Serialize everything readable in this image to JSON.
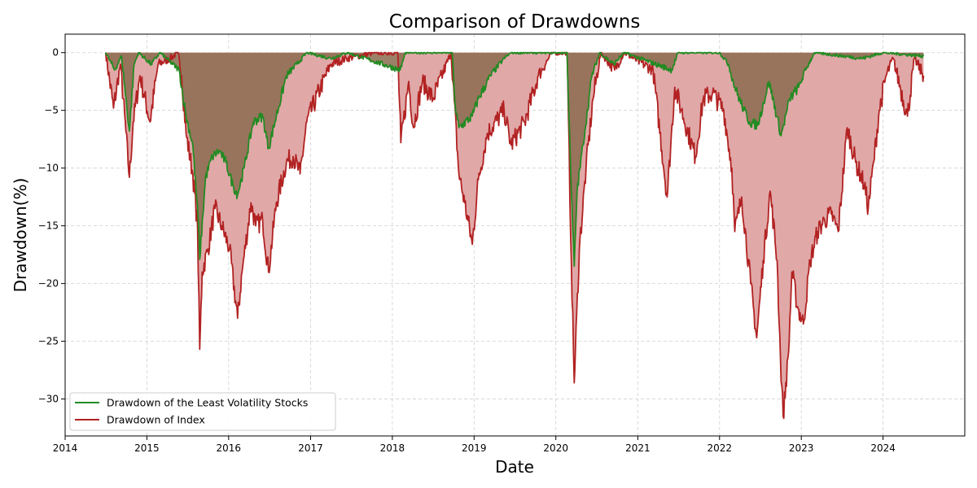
{
  "chart_data": {
    "type": "area",
    "title": "Comparison of Drawdowns",
    "xlabel": "Date",
    "ylabel": "Drawdown(%)",
    "xlim": [
      "2014-01-01",
      "2024-12-31"
    ],
    "ylim": [
      -33.2,
      1.6
    ],
    "x_ticks": [
      "2014",
      "2015",
      "2016",
      "2017",
      "2018",
      "2019",
      "2020",
      "2021",
      "2022",
      "2023",
      "2024"
    ],
    "y_ticks": [
      0,
      -5,
      -10,
      -15,
      -20,
      -25,
      -30
    ],
    "y_tick_labels": [
      "0",
      "−5",
      "−10",
      "−15",
      "−20",
      "−25",
      "−30"
    ],
    "grid": true,
    "legend_position": "lower-left",
    "series": [
      {
        "name": "Drawdown of the Least Volatility Stocks",
        "color": "#228b22",
        "fill_color": "#8b6b4f",
        "points": [
          [
            "2014-07-01",
            0
          ],
          [
            "2014-08-10",
            -1.5
          ],
          [
            "2014-09-10",
            -0.3
          ],
          [
            "2014-10-15",
            -6.8
          ],
          [
            "2014-11-05",
            -1.0
          ],
          [
            "2014-11-25",
            0
          ],
          [
            "2015-01-20",
            -1.0
          ],
          [
            "2015-03-01",
            0
          ],
          [
            "2015-05-25",
            -1.5
          ],
          [
            "2015-06-25",
            -5.5
          ],
          [
            "2015-07-25",
            -8.0
          ],
          [
            "2015-08-20",
            -15.0
          ],
          [
            "2015-08-25",
            -17.9
          ],
          [
            "2015-09-20",
            -10.8
          ],
          [
            "2015-10-20",
            -9.0
          ],
          [
            "2015-11-20",
            -8.5
          ],
          [
            "2015-12-20",
            -9.5
          ],
          [
            "2016-01-20",
            -11.5
          ],
          [
            "2016-02-10",
            -12.3
          ],
          [
            "2016-03-10",
            -10.0
          ],
          [
            "2016-04-20",
            -6.0
          ],
          [
            "2016-06-01",
            -5.5
          ],
          [
            "2016-06-27",
            -8.3
          ],
          [
            "2016-08-01",
            -5.5
          ],
          [
            "2016-09-15",
            -2.0
          ],
          [
            "2016-11-01",
            -1.0
          ],
          [
            "2016-12-15",
            0
          ],
          [
            "2017-04-01",
            -0.5
          ],
          [
            "2017-06-15",
            0
          ],
          [
            "2018-02-05",
            -1.5
          ],
          [
            "2018-03-01",
            0
          ],
          [
            "2018-09-25",
            0
          ],
          [
            "2018-10-10",
            -5.0
          ],
          [
            "2018-10-25",
            -6.5
          ],
          [
            "2018-12-24",
            -5.5
          ],
          [
            "2019-01-20",
            -4.0
          ],
          [
            "2019-03-15",
            -2.0
          ],
          [
            "2019-05-15",
            -0.5
          ],
          [
            "2019-06-15",
            0
          ],
          [
            "2020-02-20",
            0
          ],
          [
            "2020-03-10",
            -12.0
          ],
          [
            "2020-03-23",
            -18.5
          ],
          [
            "2020-04-05",
            -12.0
          ],
          [
            "2020-05-01",
            -8.0
          ],
          [
            "2020-06-10",
            -2.0
          ],
          [
            "2020-07-15",
            0
          ],
          [
            "2020-09-15",
            -1.0
          ],
          [
            "2020-11-01",
            0
          ],
          [
            "2021-06-01",
            -1.5
          ],
          [
            "2021-07-01",
            0
          ],
          [
            "2022-01-01",
            0
          ],
          [
            "2022-02-10",
            -1.0
          ],
          [
            "2022-03-10",
            -3.0
          ],
          [
            "2022-04-20",
            -5.0
          ],
          [
            "2022-05-15",
            -6.0
          ],
          [
            "2022-06-20",
            -6.3
          ],
          [
            "2022-08-10",
            -2.5
          ],
          [
            "2022-10-03",
            -7.2
          ],
          [
            "2022-11-10",
            -4.0
          ],
          [
            "2022-12-20",
            -3.0
          ],
          [
            "2023-01-20",
            -1.5
          ],
          [
            "2023-03-01",
            0
          ],
          [
            "2023-10-01",
            -0.5
          ],
          [
            "2024-01-01",
            0
          ],
          [
            "2024-06-30",
            -0.3
          ]
        ]
      },
      {
        "name": "Drawdown of Index",
        "color": "#b22222",
        "fill_color": "#dfa3a3",
        "points": [
          [
            "2014-07-01",
            0
          ],
          [
            "2014-08-05",
            -4.8
          ],
          [
            "2014-09-05",
            -1.0
          ],
          [
            "2014-10-15",
            -10.8
          ],
          [
            "2014-11-01",
            -6.0
          ],
          [
            "2014-12-01",
            -2.0
          ],
          [
            "2015-01-15",
            -6.0
          ],
          [
            "2015-02-20",
            -1.0
          ],
          [
            "2015-04-15",
            -0.5
          ],
          [
            "2015-05-20",
            0
          ],
          [
            "2015-06-05",
            -2.0
          ],
          [
            "2015-06-25",
            -7.0
          ],
          [
            "2015-07-25",
            -10.5
          ],
          [
            "2015-08-15",
            -15.0
          ],
          [
            "2015-08-25",
            -25.7
          ],
          [
            "2015-09-05",
            -19.0
          ],
          [
            "2015-10-01",
            -17.0
          ],
          [
            "2015-11-01",
            -13.5
          ],
          [
            "2015-12-01",
            -15.0
          ],
          [
            "2016-01-05",
            -17.0
          ],
          [
            "2016-02-10",
            -23.0
          ],
          [
            "2016-03-01",
            -19.0
          ],
          [
            "2016-04-10",
            -13.0
          ],
          [
            "2016-05-01",
            -15.0
          ],
          [
            "2016-06-01",
            -14.5
          ],
          [
            "2016-06-27",
            -19.0
          ],
          [
            "2016-08-01",
            -13.0
          ],
          [
            "2016-09-15",
            -9.5
          ],
          [
            "2016-10-15",
            -9.0
          ],
          [
            "2016-11-15",
            -10.5
          ],
          [
            "2016-12-15",
            -6.0
          ],
          [
            "2017-02-15",
            -3.0
          ],
          [
            "2017-04-01",
            -1.0
          ],
          [
            "2017-06-10",
            -0.5
          ],
          [
            "2017-10-15",
            0
          ],
          [
            "2018-01-25",
            0
          ],
          [
            "2018-02-08",
            -7.8
          ],
          [
            "2018-03-15",
            -2.5
          ],
          [
            "2018-04-05",
            -6.5
          ],
          [
            "2018-05-15",
            -2.5
          ],
          [
            "2018-07-01",
            -4.0
          ],
          [
            "2018-09-20",
            0
          ],
          [
            "2018-10-25",
            -10.5
          ],
          [
            "2018-11-20",
            -13.0
          ],
          [
            "2018-12-24",
            -16.6
          ],
          [
            "2019-01-20",
            -11.0
          ],
          [
            "2019-03-01",
            -7.0
          ],
          [
            "2019-05-15",
            -5.0
          ],
          [
            "2019-06-15",
            -8.0
          ],
          [
            "2019-08-15",
            -6.0
          ],
          [
            "2019-10-15",
            -2.0
          ],
          [
            "2019-12-15",
            0
          ],
          [
            "2020-02-20",
            0
          ],
          [
            "2020-03-10",
            -18.0
          ],
          [
            "2020-03-23",
            -28.6
          ],
          [
            "2020-04-15",
            -17.0
          ],
          [
            "2020-05-15",
            -10.0
          ],
          [
            "2020-06-15",
            -4.0
          ],
          [
            "2020-07-20",
            0
          ],
          [
            "2020-09-20",
            -1.5
          ],
          [
            "2020-11-01",
            0
          ],
          [
            "2021-03-10",
            -1.5
          ],
          [
            "2021-05-12",
            -12.5
          ],
          [
            "2021-06-15",
            -3.0
          ],
          [
            "2021-07-15",
            -5.0
          ],
          [
            "2021-09-15",
            -9.0
          ],
          [
            "2021-10-20",
            -4.0
          ],
          [
            "2021-12-01",
            -3.5
          ],
          [
            "2022-01-20",
            -5.0
          ],
          [
            "2022-02-25",
            -10.0
          ],
          [
            "2022-03-10",
            -15.5
          ],
          [
            "2022-04-10",
            -12.5
          ],
          [
            "2022-05-20",
            -20.0
          ],
          [
            "2022-06-16",
            -24.7
          ],
          [
            "2022-07-15",
            -18.0
          ],
          [
            "2022-08-15",
            -12.0
          ],
          [
            "2022-09-15",
            -18.0
          ],
          [
            "2022-09-30",
            -26.5
          ],
          [
            "2022-10-12",
            -31.5
          ],
          [
            "2022-11-05",
            -26.0
          ],
          [
            "2022-11-20",
            -19.0
          ],
          [
            "2022-12-15",
            -22.0
          ],
          [
            "2023-01-10",
            -23.5
          ],
          [
            "2023-02-10",
            -18.0
          ],
          [
            "2023-03-15",
            -15.5
          ],
          [
            "2023-04-15",
            -14.5
          ],
          [
            "2023-05-15",
            -14.0
          ],
          [
            "2023-06-15",
            -15.5
          ],
          [
            "2023-07-25",
            -6.5
          ],
          [
            "2023-09-01",
            -9.5
          ],
          [
            "2023-10-10",
            -11.5
          ],
          [
            "2023-10-27",
            -13.5
          ],
          [
            "2023-11-20",
            -9.5
          ],
          [
            "2023-12-15",
            -5.0
          ],
          [
            "2024-01-15",
            -2.0
          ],
          [
            "2024-02-15",
            -0.5
          ],
          [
            "2024-04-19",
            -5.5
          ],
          [
            "2024-05-20",
            -0.5
          ],
          [
            "2024-06-30",
            -2.0
          ]
        ]
      }
    ]
  }
}
